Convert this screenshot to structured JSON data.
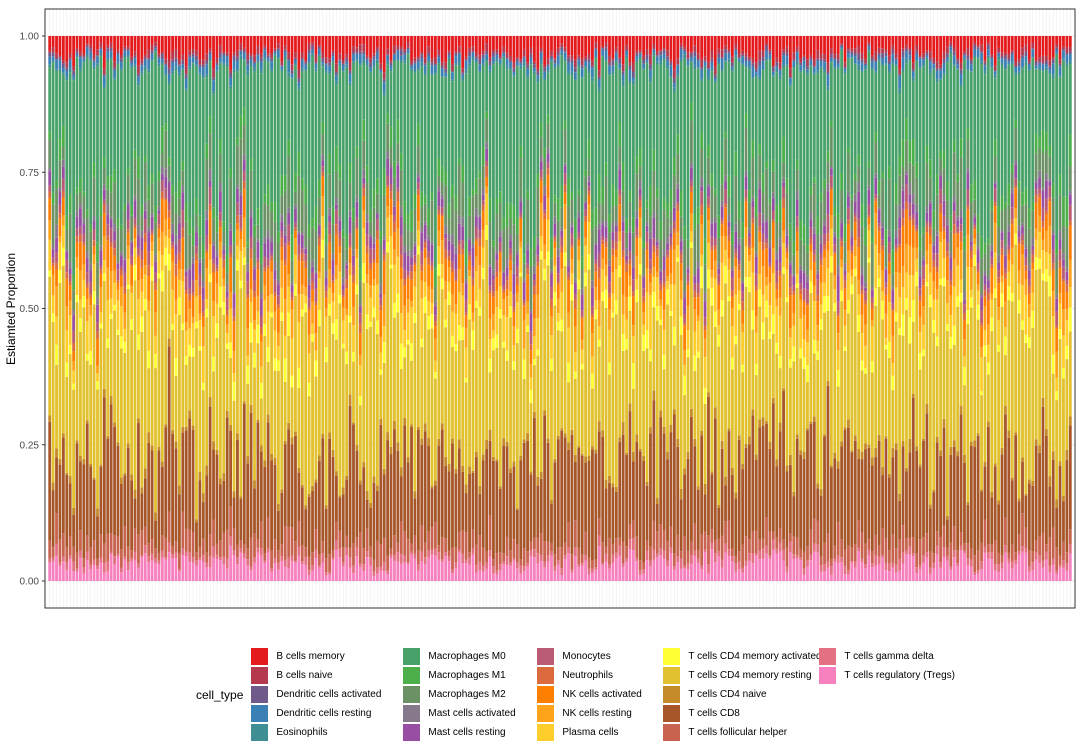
{
  "chart_data": {
    "type": "bar",
    "stacked": true,
    "ylabel": "Estiamted Proportion",
    "xlabel": "",
    "ylim": [
      0,
      1
    ],
    "yticks": [
      "0.00",
      "0.25",
      "0.50",
      "0.75",
      "1.00"
    ],
    "sample_count": 300,
    "x_tick_labels_shown": false,
    "grid": "both",
    "legend": {
      "title": "cell_type",
      "position": "bottom"
    },
    "stack_order_bottom_to_top": [
      "T cells regulatory (Tregs)",
      "T cells gamma delta",
      "T cells follicular helper",
      "T cells CD8",
      "T cells CD4 naive",
      "T cells CD4 memory resting",
      "T cells CD4 memory activated",
      "Plasma cells",
      "NK cells resting",
      "NK cells activated",
      "Neutrophils",
      "Monocytes",
      "Mast cells resting",
      "Mast cells activated",
      "Macrophages M2",
      "Macrophages M1",
      "Macrophages M0",
      "Eosinophils",
      "Dendritic cells resting",
      "Dendritic cells activated",
      "B cells naive",
      "B cells memory"
    ],
    "series": [
      {
        "name": "B cells memory",
        "color": "#E41A1C",
        "mean": 0.03
      },
      {
        "name": "B cells naive",
        "color": "#B4394F",
        "mean": 0.008
      },
      {
        "name": "Dendritic cells activated",
        "color": "#6F5A8A",
        "mean": 0.005
      },
      {
        "name": "Dendritic cells resting",
        "color": "#3A80B4",
        "mean": 0.01
      },
      {
        "name": "Eosinophils",
        "color": "#3E8E94",
        "mean": 0.004
      },
      {
        "name": "Macrophages M0",
        "color": "#47A168",
        "mean": 0.2
      },
      {
        "name": "Macrophages M1",
        "color": "#4DAF4A",
        "mean": 0.025
      },
      {
        "name": "Macrophages M2",
        "color": "#6C9165",
        "mean": 0.05
      },
      {
        "name": "Mast cells activated",
        "color": "#86798C",
        "mean": 0.01
      },
      {
        "name": "Mast cells resting",
        "color": "#984EA3",
        "mean": 0.02
      },
      {
        "name": "Monocytes",
        "color": "#BA5B75",
        "mean": 0.015
      },
      {
        "name": "Neutrophils",
        "color": "#DB6B3F",
        "mean": 0.01
      },
      {
        "name": "NK cells activated",
        "color": "#FF7F00",
        "mean": 0.03
      },
      {
        "name": "NK cells resting",
        "color": "#FFA41A",
        "mean": 0.03
      },
      {
        "name": "Plasma cells",
        "color": "#FFCE2B",
        "mean": 0.04
      },
      {
        "name": "T cells CD4 memory activated",
        "color": "#FFFF33",
        "mean": 0.02
      },
      {
        "name": "T cells CD4 memory resting",
        "color": "#E2C12E",
        "mean": 0.22
      },
      {
        "name": "T cells CD4 naive",
        "color": "#C58B2A",
        "mean": 0.01
      },
      {
        "name": "T cells CD8",
        "color": "#A65628",
        "mean": 0.14
      },
      {
        "name": "T cells follicular helper",
        "color": "#C7634E",
        "mean": 0.03
      },
      {
        "name": "T cells gamma delta",
        "color": "#E47083",
        "mean": 0.01
      },
      {
        "name": "T cells regulatory (Tregs)",
        "color": "#F781BF",
        "mean": 0.03
      }
    ]
  }
}
